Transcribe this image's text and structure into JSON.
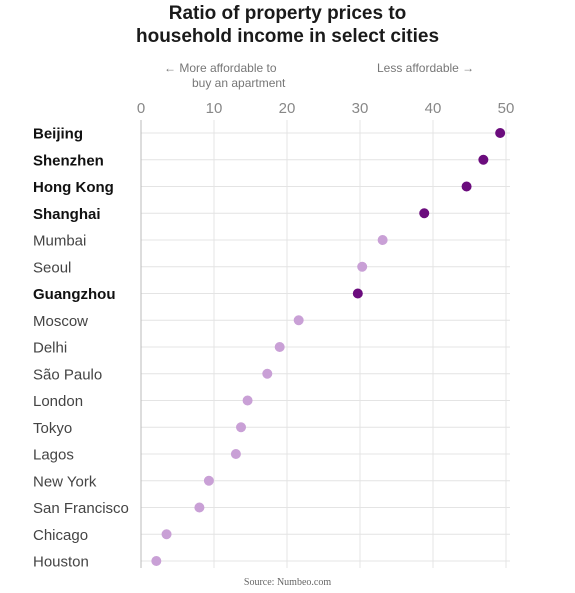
{
  "chart_data": {
    "type": "scatter",
    "title_lines": [
      "Ratio of property prices to",
      "household income in select cities"
    ],
    "annotation_left_lines": [
      "← More affordable to",
      "buy an apartment"
    ],
    "annotation_right": "Less affordable →",
    "source": "Source: Numbeo.com",
    "xlim": [
      0,
      50
    ],
    "xticks": [
      0,
      10,
      20,
      30,
      40,
      50
    ],
    "grid": true,
    "categories": [
      "Beijing",
      "Shenzhen",
      "Hong Kong",
      "Shanghai",
      "Mumbai",
      "Seoul",
      "Guangzhou",
      "Moscow",
      "Delhi",
      "São Paulo",
      "London",
      "Tokyo",
      "Lagos",
      "New York",
      "San Francisco",
      "Chicago",
      "Houston"
    ],
    "values": [
      49.2,
      46.9,
      44.6,
      38.8,
      33.1,
      30.3,
      29.7,
      21.6,
      19.0,
      17.3,
      14.6,
      13.7,
      13.0,
      9.3,
      8.0,
      3.5,
      2.1
    ],
    "highlighted": [
      true,
      true,
      true,
      true,
      false,
      false,
      true,
      false,
      false,
      false,
      false,
      false,
      false,
      false,
      false,
      false,
      false
    ],
    "colors": {
      "highlight": "#6b0c7d",
      "normal": "#c9a0d6",
      "grid": "#e4e4e4",
      "axis": "#bbbbbb"
    }
  }
}
